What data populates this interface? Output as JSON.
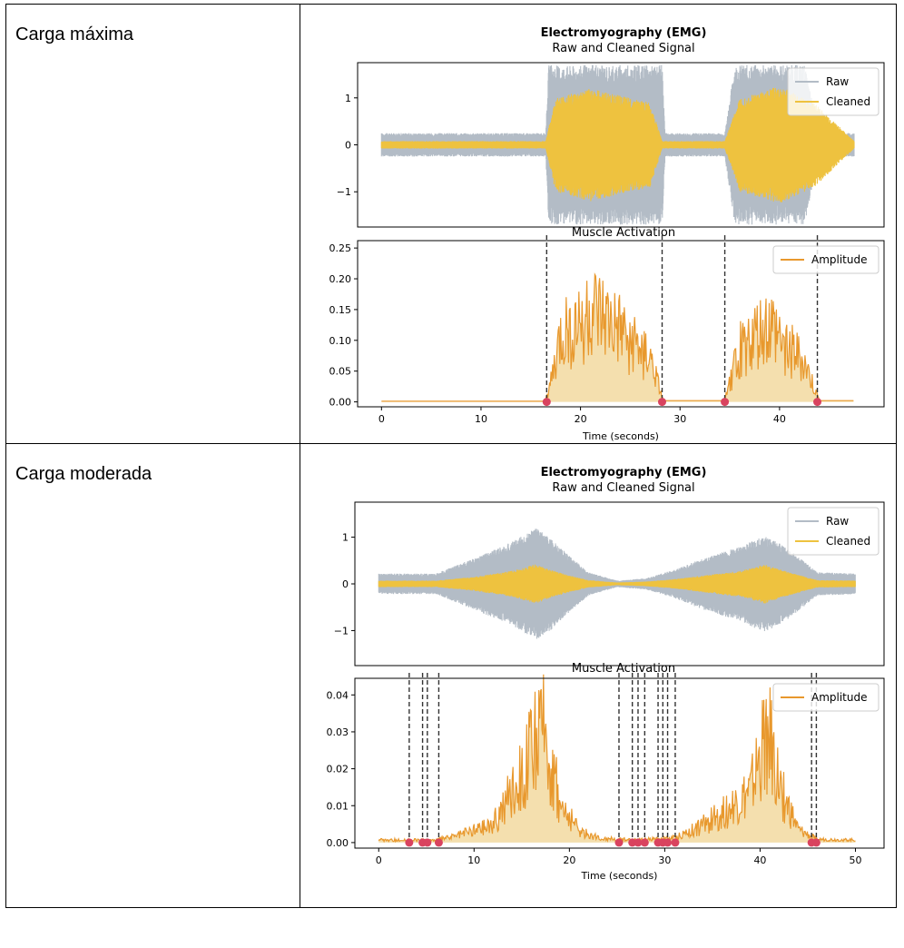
{
  "rows": [
    {
      "label": "Carga máxima",
      "chart_data": {
        "type": "line",
        "title": "Electromyography (EMG)",
        "panels": [
          {
            "title": "Raw and Cleaned Signal",
            "ylim": [
              -1.75,
              1.75
            ],
            "yticks": [
              1,
              0,
              -1
            ],
            "ytick_labels": [
              "1",
              "0",
              "−1"
            ],
            "xlim": [
              -2.4,
              50.5
            ],
            "legend": {
              "position": "top-right",
              "entries": [
                "Raw",
                "Cleaned"
              ]
            },
            "series": [
              {
                "name": "Raw",
                "color": "#b3bcc6",
                "envelope": {
                  "t": [
                    0,
                    16.5,
                    16.8,
                    28.2,
                    28.5,
                    34.5,
                    35.5,
                    42.5,
                    44.0,
                    47.5
                  ],
                  "amp": [
                    0.25,
                    0.25,
                    1.7,
                    1.7,
                    0.25,
                    0.25,
                    1.7,
                    1.7,
                    0.25,
                    0.25
                  ]
                }
              },
              {
                "name": "Cleaned",
                "color": "#eec23f",
                "envelope": {
                  "t": [
                    0,
                    16.5,
                    17.5,
                    21,
                    27,
                    28.2,
                    34.5,
                    36,
                    40,
                    43.5,
                    47.5
                  ],
                  "amp": [
                    0.08,
                    0.08,
                    1.0,
                    1.2,
                    0.9,
                    0.08,
                    0.08,
                    1.0,
                    1.25,
                    0.9,
                    0.08
                  ]
                }
              }
            ]
          },
          {
            "title": "Muscle Activation",
            "xlabel": "Time (seconds)",
            "xlim": [
              -2.4,
              50.5
            ],
            "ylim": [
              -0.008,
              0.262
            ],
            "xticks": [
              0,
              10,
              20,
              30,
              40
            ],
            "yticks": [
              0,
              0.05,
              0.1,
              0.15,
              0.2,
              0.25
            ],
            "ytick_labels": [
              "0.00",
              "0.05",
              "0.10",
              "0.15",
              "0.20",
              "0.25"
            ],
            "legend": {
              "position": "top-right",
              "entries": [
                "Amplitude"
              ]
            },
            "series": [
              {
                "name": "Amplitude",
                "color": "#e8982d",
                "fill": "#f4dfae",
                "envelope": {
                  "t": [
                    0,
                    16.4,
                    16.8,
                    18,
                    21,
                    24,
                    27,
                    28.0,
                    28.3,
                    34.4,
                    34.8,
                    36,
                    39,
                    42.5,
                    43.6,
                    44.0,
                    47.5
                  ],
                  "amp": [
                    0.001,
                    0.001,
                    0.02,
                    0.12,
                    0.17,
                    0.13,
                    0.08,
                    0.02,
                    0.002,
                    0.002,
                    0.02,
                    0.1,
                    0.14,
                    0.07,
                    0.02,
                    0.002,
                    0.002
                  ]
                }
              }
            ],
            "onsets": [
              16.6,
              28.2,
              34.5,
              43.8
            ]
          }
        ]
      }
    },
    {
      "label": "Carga moderada",
      "chart_data": {
        "type": "line",
        "title": "Electromyography (EMG)",
        "panels": [
          {
            "title": "Raw and Cleaned Signal",
            "ylim": [
              -1.75,
              1.75
            ],
            "yticks": [
              1,
              0,
              -1
            ],
            "ytick_labels": [
              "1",
              "0",
              "−1"
            ],
            "xlim": [
              -2.5,
              53.0
            ],
            "legend": {
              "position": "top-right",
              "entries": [
                "Raw",
                "Cleaned"
              ]
            },
            "series": [
              {
                "name": "Raw",
                "color": "#b3bcc6",
                "envelope": {
                  "t": [
                    0,
                    6,
                    10,
                    14,
                    16.5,
                    18,
                    20,
                    22,
                    25,
                    28,
                    31,
                    34,
                    38,
                    40.5,
                    43,
                    46,
                    50
                  ],
                  "amp": [
                    0.22,
                    0.22,
                    0.55,
                    0.9,
                    1.2,
                    1.0,
                    0.6,
                    0.25,
                    0.07,
                    0.12,
                    0.3,
                    0.55,
                    0.8,
                    1.05,
                    0.75,
                    0.25,
                    0.22
                  ]
                }
              },
              {
                "name": "Cleaned",
                "color": "#eec23f",
                "envelope": {
                  "t": [
                    0,
                    6,
                    10,
                    14,
                    16.5,
                    18,
                    20,
                    22,
                    25,
                    28,
                    31,
                    34,
                    38,
                    40.5,
                    43,
                    46,
                    50
                  ],
                  "amp": [
                    0.07,
                    0.07,
                    0.15,
                    0.28,
                    0.42,
                    0.3,
                    0.18,
                    0.08,
                    0.03,
                    0.05,
                    0.1,
                    0.18,
                    0.28,
                    0.42,
                    0.25,
                    0.08,
                    0.07
                  ]
                }
              }
            ]
          },
          {
            "title": "Muscle Activation",
            "xlabel": "Time (seconds)",
            "xlim": [
              -2.5,
              53.0
            ],
            "ylim": [
              -0.0015,
              0.0445
            ],
            "xticks": [
              0,
              10,
              20,
              30,
              40,
              50
            ],
            "yticks": [
              0,
              0.01,
              0.02,
              0.03,
              0.04
            ],
            "ytick_labels": [
              "0.00",
              "0.01",
              "0.02",
              "0.03",
              "0.04"
            ],
            "legend": {
              "position": "top-right",
              "entries": [
                "Amplitude"
              ]
            },
            "series": [
              {
                "name": "Amplitude",
                "color": "#e8982d",
                "fill": "#f4dfae",
                "envelope": {
                  "t": [
                    0,
                    6,
                    8,
                    12,
                    14.5,
                    16.5,
                    17.5,
                    19,
                    21,
                    23,
                    25,
                    28,
                    31,
                    33,
                    36,
                    39,
                    40.8,
                    42,
                    44,
                    46,
                    50
                  ],
                  "amp": [
                    0.0008,
                    0.0008,
                    0.002,
                    0.006,
                    0.02,
                    0.032,
                    0.036,
                    0.012,
                    0.004,
                    0.0015,
                    0.001,
                    0.001,
                    0.0015,
                    0.004,
                    0.009,
                    0.016,
                    0.035,
                    0.018,
                    0.004,
                    0.001,
                    0.0008
                  ]
                }
              }
            ],
            "onsets": [
              3.2,
              4.6,
              5.1,
              6.3,
              25.2,
              26.6,
              27.2,
              27.9,
              29.3,
              29.8,
              30.3,
              31.1,
              45.4,
              45.9
            ]
          }
        ]
      }
    }
  ]
}
